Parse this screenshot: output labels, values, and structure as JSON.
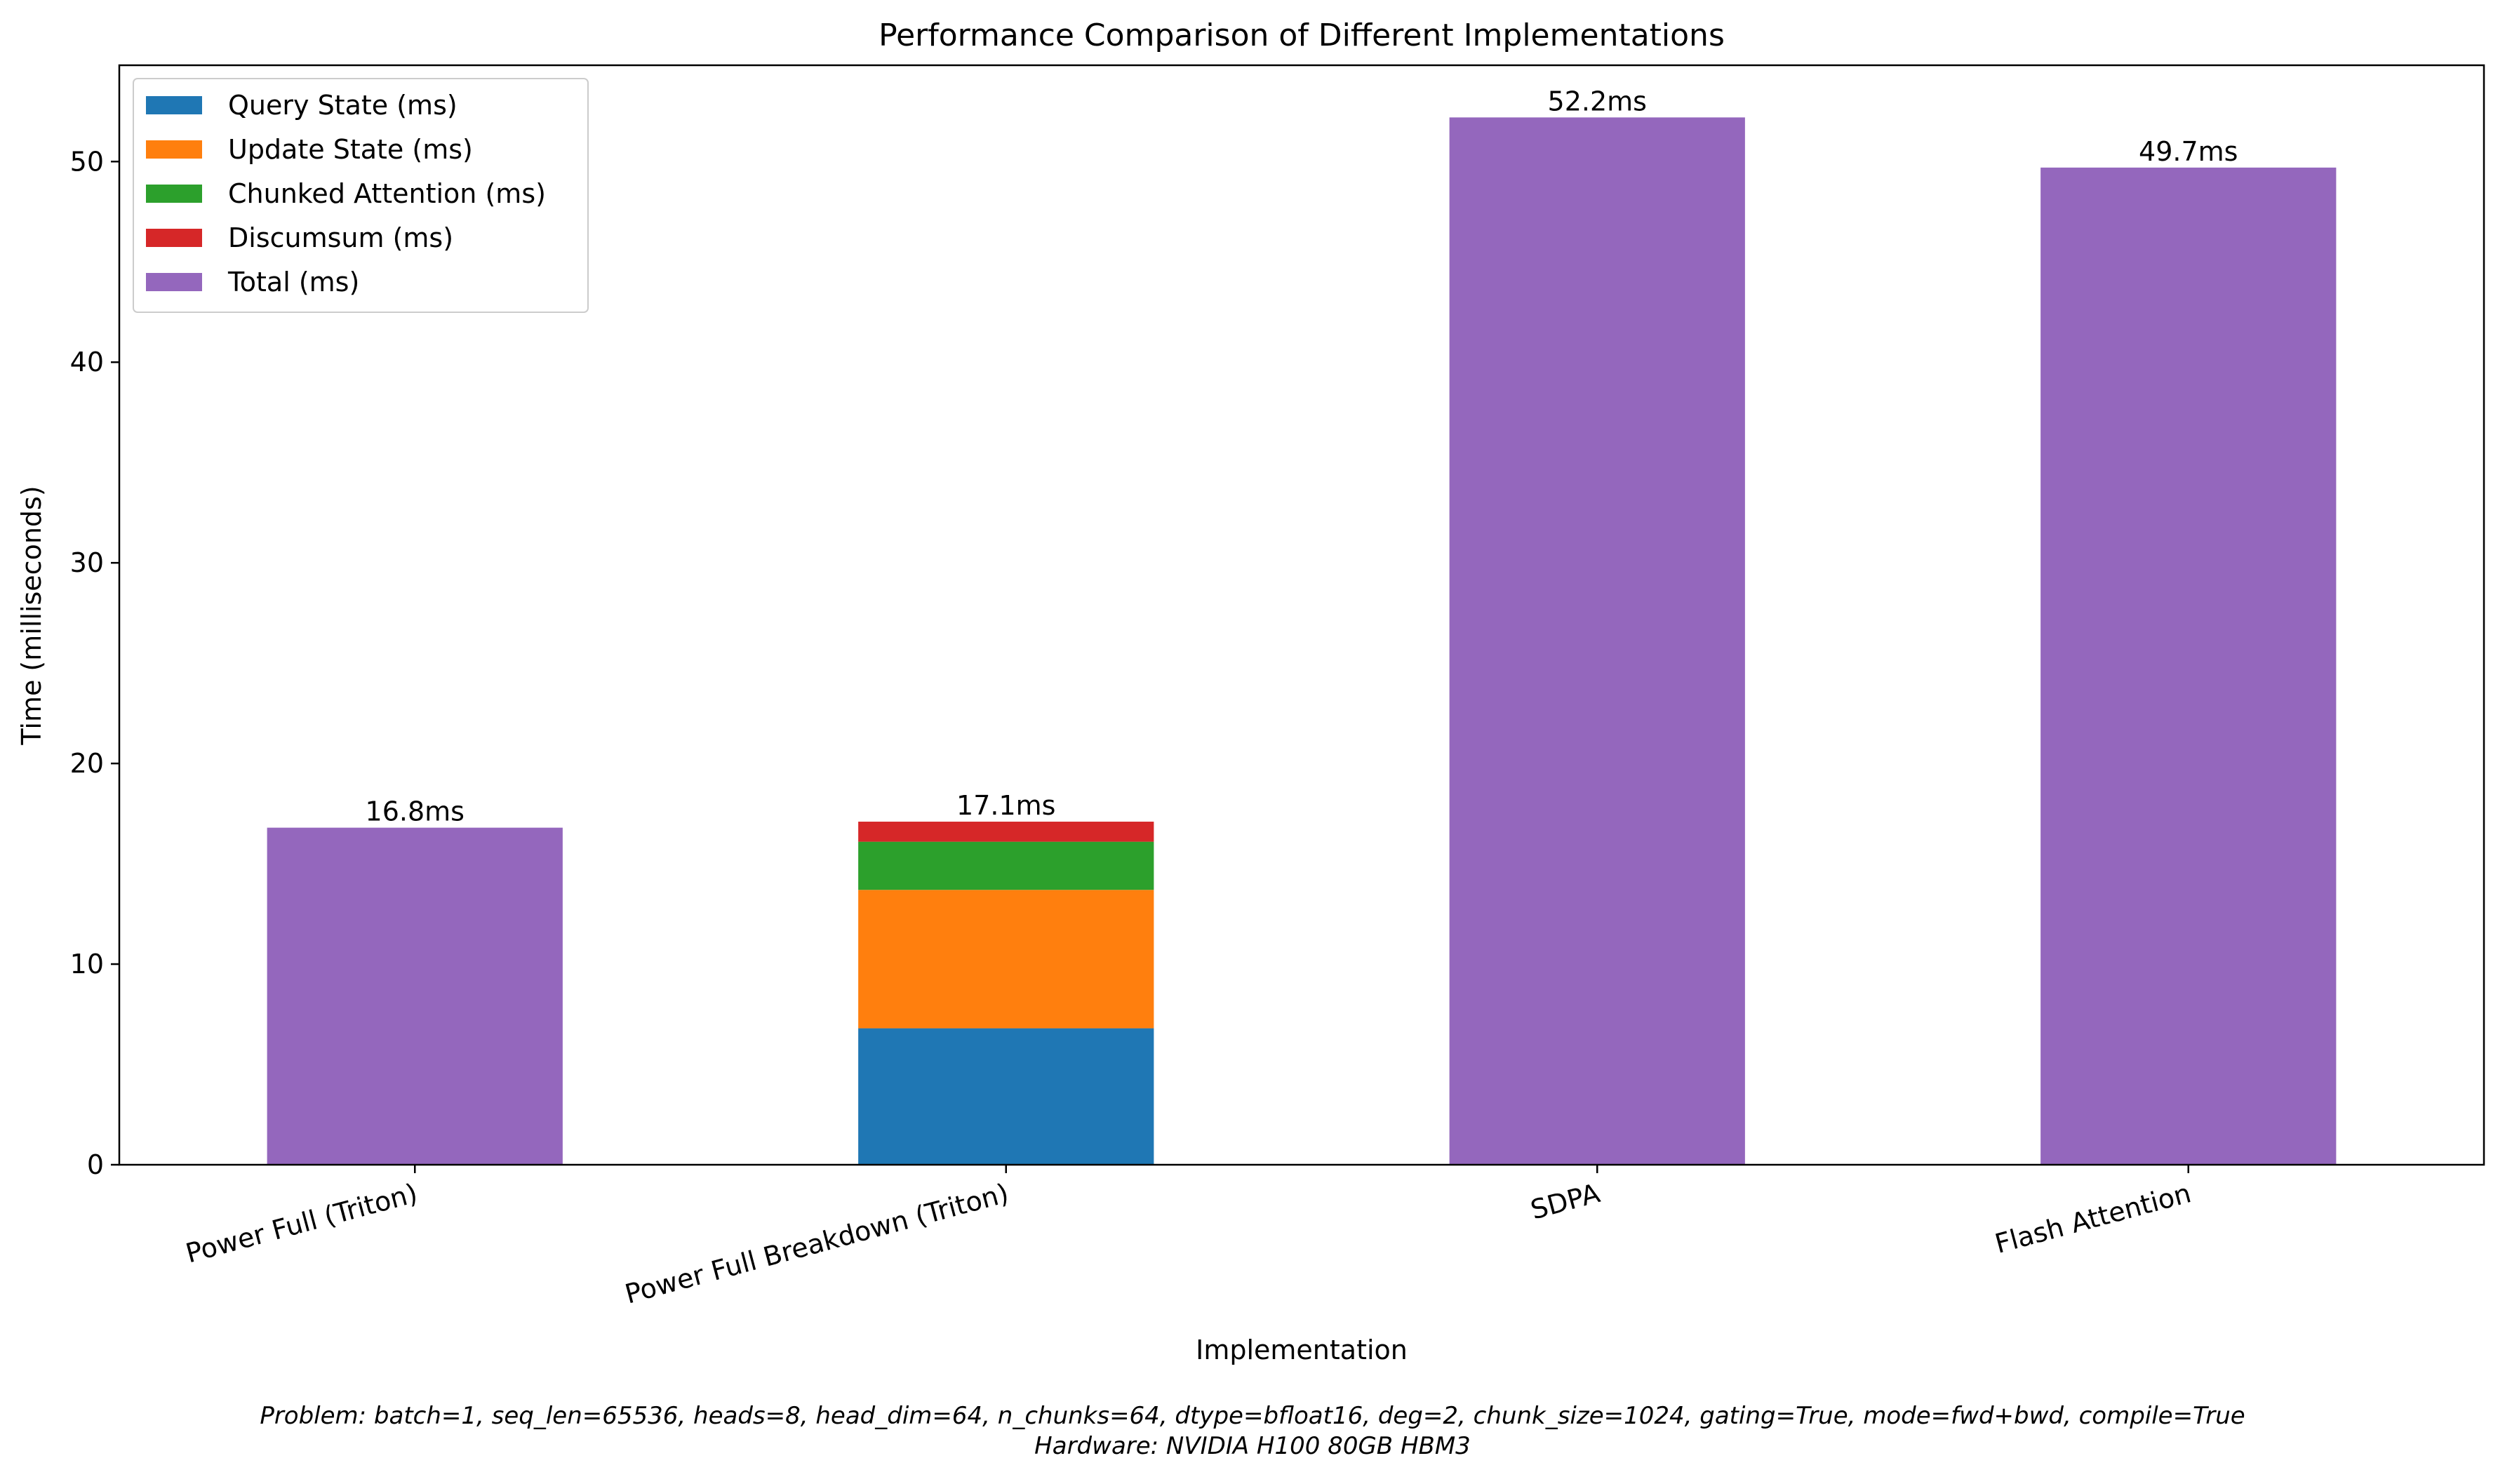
{
  "chart_data": {
    "type": "bar",
    "stacked": true,
    "title": "Performance Comparison of Different Implementations",
    "xlabel": "Implementation",
    "ylabel": "Time (milliseconds)",
    "ylim": [
      0,
      54.8
    ],
    "yticks": [
      0,
      10,
      20,
      30,
      40,
      50
    ],
    "grid": false,
    "legend_position": "upper-left",
    "categories": [
      "Power Full (Triton)",
      "Power Full Breakdown (Triton)",
      "SDPA",
      "Flash Attention"
    ],
    "series": [
      {
        "name": "Query State (ms)",
        "color": "#1f77b4",
        "values": [
          0,
          6.8,
          0,
          0
        ]
      },
      {
        "name": "Update State (ms)",
        "color": "#ff7f0e",
        "values": [
          0,
          6.9,
          0,
          0
        ]
      },
      {
        "name": "Chunked Attention (ms)",
        "color": "#2ca02c",
        "values": [
          0,
          2.4,
          0,
          0
        ]
      },
      {
        "name": "Discumsum (ms)",
        "color": "#d62728",
        "values": [
          0,
          1.0,
          0,
          0
        ]
      },
      {
        "name": "Total (ms)",
        "color": "#9467bd",
        "values": [
          16.8,
          0,
          52.2,
          49.7
        ]
      }
    ],
    "data_labels": [
      "16.8ms",
      "17.1ms",
      "52.2ms",
      "49.7ms"
    ],
    "footnote": [
      "Problem: batch=1, seq_len=65536, heads=8, head_dim=64, n_chunks=64, dtype=bfloat16, deg=2, chunk_size=1024, gating=True, mode=fwd+bwd, compile=True",
      "Hardware: NVIDIA H100 80GB HBM3"
    ]
  }
}
